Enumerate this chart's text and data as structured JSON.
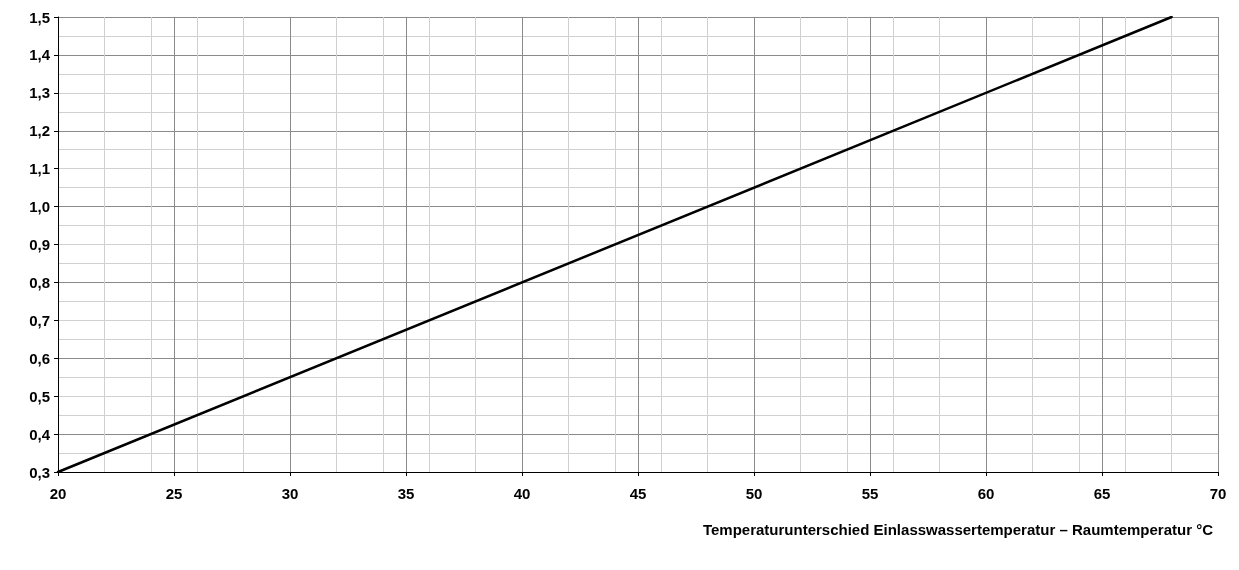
{
  "chart_data": {
    "type": "line",
    "xlabel": "Temperaturunterschied Einlasswassertemperatur – Raumtemperatur °C",
    "x": [
      20,
      68
    ],
    "series": [
      {
        "color": "#000000",
        "values": [
          0.3,
          1.5
        ]
      }
    ],
    "xlim": [
      20,
      70
    ],
    "xticks": [
      20,
      25,
      30,
      35,
      40,
      45,
      50,
      55,
      60,
      65,
      70
    ],
    "ylim": [
      0.3,
      1.5
    ],
    "yticks": [
      {
        "value": 0.3,
        "label": "0,3"
      },
      {
        "value": 0.4,
        "label": "0,4"
      },
      {
        "value": 0.5,
        "label": "0,5"
      },
      {
        "value": 0.6,
        "label": "0,6"
      },
      {
        "value": 0.7,
        "label": "0,7"
      },
      {
        "value": 0.8,
        "label": "0,8"
      },
      {
        "value": 0.9,
        "label": "0,9"
      },
      {
        "value": 1.0,
        "label": "1,0"
      },
      {
        "value": 1.1,
        "label": "1,1"
      },
      {
        "value": 1.2,
        "label": "1,2"
      },
      {
        "value": 1.3,
        "label": "1,3"
      },
      {
        "value": 1.4,
        "label": "1,4"
      },
      {
        "value": 1.5,
        "label": "1,5"
      }
    ],
    "grid": true,
    "marker": "none",
    "line_style": "solid"
  }
}
